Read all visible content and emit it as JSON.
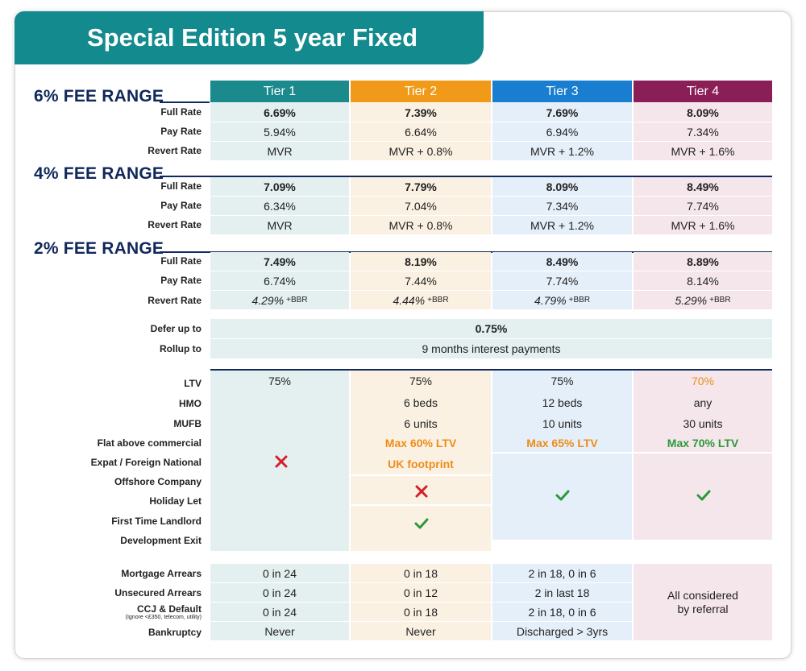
{
  "title": "Special Edition 5 year Fixed",
  "colors": {
    "teal": "#138a8e",
    "tier1": "#1a8a8c",
    "tier2": "#f19a1a",
    "tier3": "#1a7ed0",
    "tier4": "#8a1f57",
    "navy": "#10285a",
    "orange_text": "#ee8c1a",
    "green_text": "#2a9a3a",
    "cross_red": "#d41f2a"
  },
  "tiers": [
    "Tier 1",
    "Tier 2",
    "Tier 3",
    "Tier 4"
  ],
  "fee_ranges": [
    {
      "title": "6% FEE RANGE",
      "rows": [
        {
          "label": "Full Rate",
          "values": [
            "6.69%",
            "7.39%",
            "7.69%",
            "8.09%"
          ]
        },
        {
          "label": "Pay Rate",
          "values": [
            "5.94%",
            "6.64%",
            "6.94%",
            "7.34%"
          ]
        },
        {
          "label": "Revert Rate",
          "values": [
            "MVR",
            "MVR + 0.8%",
            "MVR + 1.2%",
            "MVR + 1.6%"
          ]
        }
      ]
    },
    {
      "title": "4% FEE RANGE",
      "rows": [
        {
          "label": "Full Rate",
          "values": [
            "7.09%",
            "7.79%",
            "8.09%",
            "8.49%"
          ]
        },
        {
          "label": "Pay Rate",
          "values": [
            "6.34%",
            "7.04%",
            "7.34%",
            "7.74%"
          ]
        },
        {
          "label": "Revert Rate",
          "values": [
            "MVR",
            "MVR + 0.8%",
            "MVR + 1.2%",
            "MVR + 1.6%"
          ]
        }
      ]
    },
    {
      "title": "2% FEE RANGE",
      "rows": [
        {
          "label": "Full Rate",
          "values": [
            "7.49%",
            "8.19%",
            "8.49%",
            "8.89%"
          ]
        },
        {
          "label": "Pay Rate",
          "values": [
            "6.74%",
            "7.44%",
            "7.74%",
            "8.14%"
          ]
        },
        {
          "label": "Revert Rate",
          "values": [
            "4.29%",
            "4.44%",
            "4.79%",
            "5.29%"
          ],
          "suffix": "+BBR"
        }
      ]
    }
  ],
  "defer": {
    "label": "Defer up to",
    "value": "0.75%"
  },
  "rollup": {
    "label": "Rollup to",
    "value": "9 months interest payments"
  },
  "criteria": {
    "labels": [
      "LTV",
      "HMO",
      "MUFB",
      "Flat above commercial",
      "Expat / Foreign National",
      "Offshore Company",
      "Holiday Let",
      "First Time Landlord",
      "Development Exit"
    ],
    "ltv": [
      "75%",
      "75%",
      "75%",
      "70%"
    ],
    "hmo": [
      "6 beds",
      "12 beds",
      "any"
    ],
    "mufb": [
      "6 units",
      "10 units",
      "30 units"
    ],
    "flat": [
      "Max 60% LTV",
      "Max 65% LTV",
      "Max 70% LTV"
    ],
    "expat_tier2": "UK footprint",
    "icons": [
      "cross-icon",
      "cross-icon",
      "check-icon",
      "check-icon",
      "check-icon"
    ]
  },
  "credit": {
    "labels": [
      "Mortgage Arrears",
      "Unsecured Arrears",
      "CCJ & Default",
      "Bankruptcy"
    ],
    "ccj_note": "(Ignore <£350, telecom, utility)",
    "tier1": [
      "0 in 24",
      "0 in 24",
      "0 in 24",
      "Never"
    ],
    "tier2": [
      "0 in 18",
      "0 in 12",
      "0 in 18",
      "Never"
    ],
    "tier3": [
      "2 in 18, 0 in 6",
      "2 in last 18",
      "2 in 18, 0 in 6",
      "Discharged > 3yrs"
    ],
    "tier4": [
      "All considered",
      "by referral"
    ]
  }
}
